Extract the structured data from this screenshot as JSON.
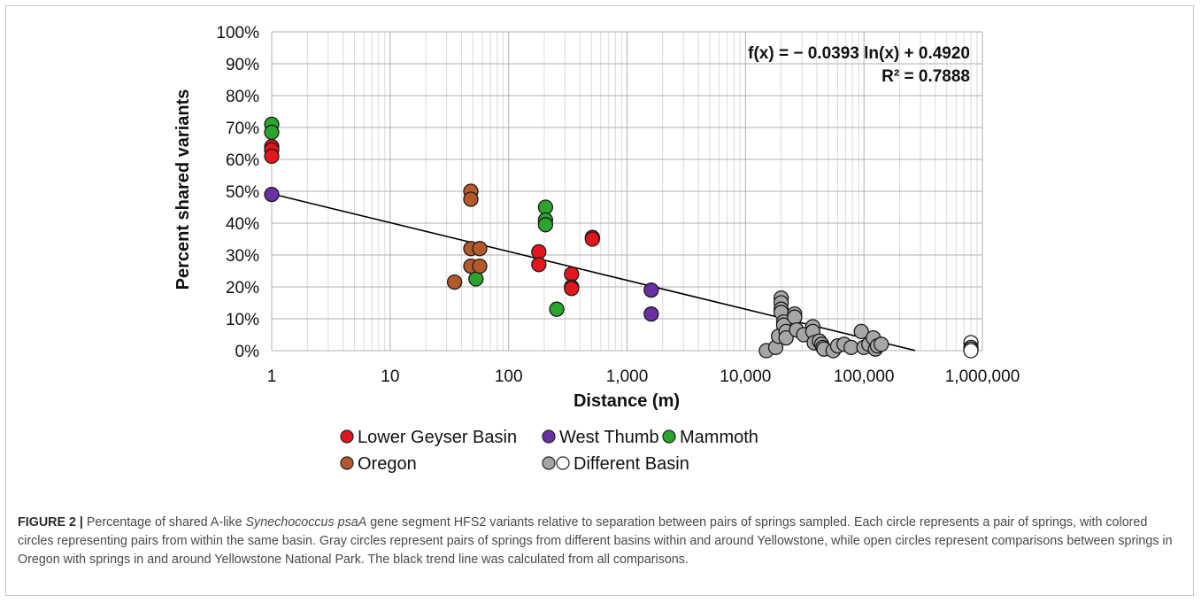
{
  "chart_data": {
    "type": "scatter",
    "xlabel": "Distance (m)",
    "ylabel": "Percent shared variants",
    "xscale": "log",
    "xlim": [
      1,
      1000000
    ],
    "ylim": [
      0,
      100
    ],
    "x_ticks": [
      1,
      10,
      100,
      1000,
      10000,
      100000,
      1000000
    ],
    "x_tick_labels": [
      "1",
      "10",
      "100",
      "1,000",
      "10,000",
      "100,000",
      "1,000,000"
    ],
    "y_ticks": [
      0,
      10,
      20,
      30,
      40,
      50,
      60,
      70,
      80,
      90,
      100
    ],
    "y_tick_labels": [
      "0%",
      "10%",
      "20%",
      "30%",
      "40%",
      "50%",
      "60%",
      "70%",
      "80%",
      "90%",
      "100%"
    ],
    "grid": "major and minor",
    "trendline": {
      "equation": "f(x) = − 0.0393 ln(x) + 0.4920",
      "r_squared": "R² = 0.7888",
      "slope": -0.0393,
      "intercept": 0.492,
      "x_range": [
        1,
        270000
      ],
      "color": "#000000"
    },
    "legend_position": "bottom",
    "series": [
      {
        "name": "Lower Geyser Basin",
        "color": "#e3161d",
        "points": [
          [
            1,
            64
          ],
          [
            1,
            63
          ],
          [
            1,
            61
          ],
          [
            180,
            31
          ],
          [
            180,
            27
          ],
          [
            340,
            24
          ],
          [
            340,
            20
          ],
          [
            340,
            19.5
          ],
          [
            510,
            35.5
          ],
          [
            510,
            35
          ]
        ]
      },
      {
        "name": "West Thumb",
        "color": "#6b2fa4",
        "points": [
          [
            1,
            49
          ],
          [
            1600,
            19
          ],
          [
            1600,
            11.5
          ]
        ]
      },
      {
        "name": "Mammoth",
        "color": "#2ba42f",
        "points": [
          [
            1,
            71
          ],
          [
            1,
            68.5
          ],
          [
            205,
            45
          ],
          [
            205,
            41
          ],
          [
            205,
            39.5
          ],
          [
            53,
            22.5
          ],
          [
            255,
            13
          ]
        ]
      },
      {
        "name": "Oregon",
        "color": "#b5592a",
        "points": [
          [
            48,
            50
          ],
          [
            48,
            47.5
          ],
          [
            48,
            32
          ],
          [
            57,
            32
          ],
          [
            48,
            26.5
          ],
          [
            57,
            26.5
          ],
          [
            35,
            21.5
          ]
        ]
      },
      {
        "name": "Different Basin",
        "color": "#a6a6a6",
        "points": [
          [
            15000,
            0
          ],
          [
            18000,
            1
          ],
          [
            19000,
            4.5
          ],
          [
            20000,
            16.5
          ],
          [
            20000,
            15
          ],
          [
            20000,
            13
          ],
          [
            20000,
            12
          ],
          [
            21000,
            9
          ],
          [
            21000,
            8
          ],
          [
            22000,
            6
          ],
          [
            22000,
            4
          ],
          [
            26000,
            11.5
          ],
          [
            26000,
            10.5
          ],
          [
            27000,
            6.5
          ],
          [
            31000,
            5
          ],
          [
            37000,
            7.5
          ],
          [
            37000,
            6
          ],
          [
            38000,
            2.5
          ],
          [
            42000,
            3
          ],
          [
            44000,
            2
          ],
          [
            45000,
            1
          ],
          [
            46000,
            0.5
          ],
          [
            55000,
            0
          ],
          [
            60000,
            1.5
          ],
          [
            68000,
            2
          ],
          [
            78000,
            1
          ],
          [
            95000,
            6
          ],
          [
            100000,
            1
          ],
          [
            110000,
            2
          ],
          [
            120000,
            4
          ],
          [
            125000,
            0.5
          ],
          [
            130000,
            1.5
          ],
          [
            140000,
            2
          ]
        ]
      },
      {
        "name": "Different Basin (open)",
        "color": "#ffffff",
        "points": [
          [
            800000,
            2.5
          ],
          [
            800000,
            1
          ],
          [
            800000,
            0.5
          ],
          [
            800000,
            0
          ]
        ]
      }
    ]
  },
  "legend": {
    "items": [
      {
        "label": "Lower Geyser Basin",
        "color": "#e3161d"
      },
      {
        "label": "West Thumb",
        "color": "#6b2fa4"
      },
      {
        "label": "Mammoth",
        "color": "#2ba42f"
      },
      {
        "label": "Oregon",
        "color": "#b5592a"
      },
      {
        "label": "Different Basin",
        "color": "#a6a6a6",
        "open_color": "#ffffff"
      }
    ]
  },
  "caption": {
    "label": "FIGURE 2 |",
    "text_1": " Percentage of shared A-like ",
    "italic": "Synechococcus psaA",
    "text_2": " gene segment HFS2 variants relative to separation between pairs of springs sampled. Each circle represents a pair of springs, with colored circles representing pairs from within the same basin. Gray circles represent pairs of springs from different basins within and around Yellowstone, while open circles represent comparisons between springs in Oregon with springs in and around Yellowstone National Park. The black trend line was calculated from all comparisons."
  }
}
